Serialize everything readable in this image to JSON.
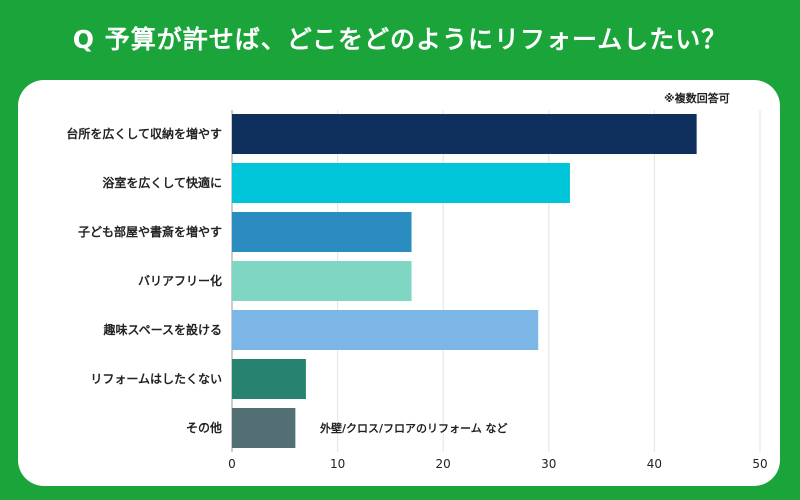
{
  "title": "Q 予算が許せば、どこをどのようにリフォームしたい？",
  "note": "※複数回答可",
  "chart_data": {
    "type": "bar",
    "orientation": "horizontal",
    "categories": [
      "台所を広くして収納を増やす",
      "浴室を広くして快適に",
      "子ども部屋や書斎を増やす",
      "バリアフリー化",
      "趣味スペースを設ける",
      "リフォームはしたくない",
      "その他"
    ],
    "values": [
      44,
      32,
      17,
      17,
      29,
      7,
      6
    ],
    "colors": [
      "#0f2f5c",
      "#00c4d8",
      "#2b8cbf",
      "#7fd6c2",
      "#7cb6e6",
      "#27836f",
      "#536f73"
    ],
    "xlim": [
      0,
      50
    ],
    "xticks": [
      "0",
      "10",
      "20",
      "30",
      "40",
      "50"
    ],
    "annotation": "外壁/クロス/フロアのリフォーム など",
    "grid": true
  },
  "colors": {
    "background": "#1aa43a",
    "card": "#ffffff"
  }
}
